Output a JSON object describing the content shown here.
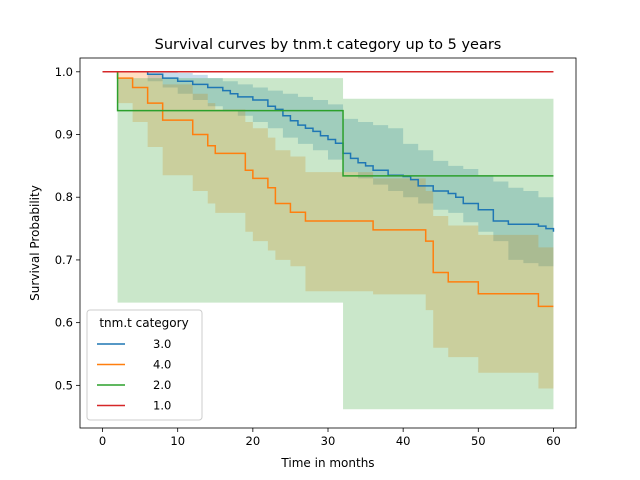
{
  "chart_data": {
    "type": "line",
    "title": "Survival curves by tnm.t category up to 5 years",
    "xlabel": "Time in months",
    "ylabel": "Survival Probability",
    "xlim": [
      -3,
      63
    ],
    "ylim": [
      0.432,
      1.022
    ],
    "xticks": [
      0,
      10,
      20,
      30,
      40,
      50,
      60
    ],
    "yticks": [
      0.5,
      0.6,
      0.7,
      0.8,
      0.9,
      1.0
    ],
    "xtick_labels": [
      "0",
      "10",
      "20",
      "30",
      "40",
      "50",
      "60"
    ],
    "ytick_labels": [
      "0.5",
      "0.6",
      "0.7",
      "0.8",
      "0.9",
      "1.0"
    ],
    "grid": false,
    "legend_title": "tnm.t category",
    "legend_position": "lower-left",
    "series": [
      {
        "name": "3.0",
        "color": "#1f77b4",
        "step": {
          "x": [
            0,
            6,
            8,
            10,
            12,
            14,
            16,
            17,
            18,
            20,
            22,
            23,
            24,
            25,
            26,
            27,
            28,
            29,
            30,
            31,
            32,
            33,
            34,
            35,
            36,
            38,
            40,
            41,
            42,
            44,
            46,
            47,
            48,
            50,
            52,
            54,
            58,
            59,
            60
          ],
          "y": [
            1.0,
            0.996,
            0.99,
            0.985,
            0.98,
            0.975,
            0.97,
            0.965,
            0.96,
            0.955,
            0.945,
            0.94,
            0.93,
            0.922,
            0.915,
            0.91,
            0.905,
            0.898,
            0.892,
            0.886,
            0.87,
            0.862,
            0.855,
            0.85,
            0.843,
            0.835,
            0.833,
            0.828,
            0.818,
            0.81,
            0.806,
            0.8,
            0.79,
            0.78,
            0.762,
            0.757,
            0.754,
            0.75,
            0.745
          ]
        },
        "ci_lower": {
          "x": [
            0,
            6,
            8,
            10,
            12,
            14,
            16,
            18,
            20,
            22,
            24,
            26,
            28,
            30,
            32,
            34,
            36,
            38,
            40,
            42,
            44,
            46,
            48,
            50,
            52,
            54,
            56,
            58,
            60
          ],
          "y": [
            1.0,
            0.985,
            0.975,
            0.965,
            0.955,
            0.945,
            0.937,
            0.93,
            0.92,
            0.91,
            0.895,
            0.885,
            0.875,
            0.86,
            0.84,
            0.83,
            0.82,
            0.81,
            0.8,
            0.79,
            0.78,
            0.775,
            0.76,
            0.745,
            0.73,
            0.7,
            0.695,
            0.69,
            0.69
          ]
        },
        "ci_upper": {
          "x": [
            0,
            6,
            8,
            10,
            12,
            14,
            16,
            18,
            20,
            22,
            24,
            26,
            28,
            30,
            32,
            34,
            36,
            38,
            40,
            42,
            44,
            46,
            48,
            50,
            52,
            54,
            56,
            58,
            60
          ],
          "y": [
            1.0,
            1.0,
            1.0,
            0.998,
            0.995,
            0.99,
            0.985,
            0.98,
            0.975,
            0.97,
            0.965,
            0.96,
            0.955,
            0.948,
            0.925,
            0.92,
            0.915,
            0.91,
            0.885,
            0.875,
            0.858,
            0.85,
            0.845,
            0.835,
            0.825,
            0.815,
            0.81,
            0.8,
            0.795
          ]
        }
      },
      {
        "name": "4.0",
        "color": "#ff7f0e",
        "step": {
          "x": [
            0,
            2,
            4,
            6,
            8,
            12,
            14,
            15,
            19,
            20,
            22,
            23,
            25,
            27,
            36,
            43,
            44,
            46,
            50,
            58,
            60
          ],
          "y": [
            1.0,
            0.99,
            0.975,
            0.95,
            0.923,
            0.9,
            0.882,
            0.87,
            0.843,
            0.83,
            0.815,
            0.79,
            0.776,
            0.762,
            0.748,
            0.73,
            0.68,
            0.665,
            0.646,
            0.626,
            0.626
          ]
        },
        "ci_lower": {
          "x": [
            0,
            2,
            4,
            6,
            8,
            12,
            14,
            15,
            19,
            20,
            22,
            23,
            25,
            27,
            36,
            43,
            44,
            46,
            50,
            58,
            60
          ],
          "y": [
            1.0,
            0.95,
            0.92,
            0.88,
            0.835,
            0.81,
            0.79,
            0.775,
            0.745,
            0.73,
            0.715,
            0.7,
            0.69,
            0.65,
            0.645,
            0.62,
            0.56,
            0.545,
            0.52,
            0.495,
            0.495
          ]
        },
        "ci_upper": {
          "x": [
            0,
            2,
            4,
            6,
            8,
            12,
            14,
            15,
            19,
            20,
            22,
            23,
            25,
            27,
            36,
            43,
            44,
            46,
            50,
            58,
            60
          ],
          "y": [
            1.0,
            1.0,
            1.0,
            0.995,
            0.98,
            0.965,
            0.95,
            0.94,
            0.92,
            0.91,
            0.895,
            0.875,
            0.865,
            0.84,
            0.83,
            0.81,
            0.77,
            0.755,
            0.74,
            0.72,
            0.72
          ]
        }
      },
      {
        "name": "2.0",
        "color": "#2ca02c",
        "step": {
          "x": [
            0,
            2,
            32,
            60
          ],
          "y": [
            1.0,
            0.938,
            0.834,
            0.834
          ]
        },
        "ci_lower": {
          "x": [
            0,
            2,
            32,
            60
          ],
          "y": [
            1.0,
            0.632,
            0.462,
            0.462
          ]
        },
        "ci_upper": {
          "x": [
            0,
            2,
            32,
            60
          ],
          "y": [
            1.0,
            0.99,
            0.957,
            0.957
          ]
        }
      },
      {
        "name": "1.0",
        "color": "#d62728",
        "step": {
          "x": [
            0,
            60
          ],
          "y": [
            1.0,
            1.0
          ]
        }
      }
    ]
  }
}
